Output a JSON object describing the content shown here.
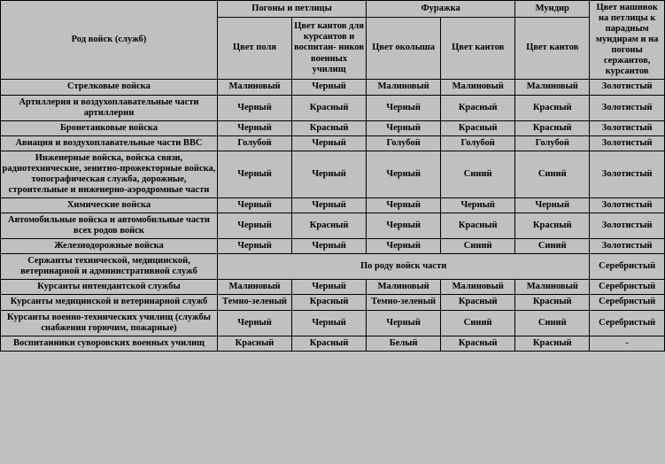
{
  "header": {
    "rod": "Род войск (служб)",
    "g1": "Погоны и петлицы",
    "g2": "Фуражка",
    "g3": "Мундир",
    "nashivok": "Цвет нашивок на петлицы к парадным мундирам и на погоны сержантов, курсантов",
    "c1": "Цвет поля",
    "c2": "Цвет кантов для курсантов и воспитан- ников военных училищ",
    "c3": "Цвет околыша",
    "c4": "Цвет кантов",
    "c5": "Цвет кантов"
  },
  "rows": [
    {
      "k": "r0",
      "name": "Стрелковые войска",
      "v": [
        "Малиновый",
        "Черный",
        "Малиновый",
        "Малиновый",
        "Малиновый",
        "Золотистый"
      ]
    },
    {
      "k": "r1",
      "name": "Артиллерия и воздухоплавательные части артиллерии",
      "v": [
        "Черный",
        "Красный",
        "Черный",
        "Красный",
        "Красный",
        "Золотистый"
      ]
    },
    {
      "k": "r2",
      "name": "Бронетанковые войска",
      "v": [
        "Черный",
        "Красный",
        "Черный",
        "Красный",
        "Красный",
        "Золотистый"
      ]
    },
    {
      "k": "r3",
      "name": "Авиация и воздухоплавательные части ВВС",
      "v": [
        "Голубой",
        "Черный",
        "Голубой",
        "Голубой",
        "Голубой",
        "Золотистый"
      ]
    },
    {
      "k": "r4",
      "name": "Инженерные войска, войска связи, радиотехнические, зенитно-прожекторные войска, топографическая служба, дорожные, строительные и инженерно-аэродромные части",
      "v": [
        "Черный",
        "Черный",
        "Черный",
        "Синий",
        "Синий",
        "Золотистый"
      ]
    },
    {
      "k": "r5",
      "name": "Химические войска",
      "v": [
        "Черный",
        "Черный",
        "Черный",
        "Черный",
        "Черный",
        "Золотистый"
      ]
    },
    {
      "k": "r6",
      "name": "Автомобильные войска и автомобильные части всех родов войск",
      "v": [
        "Черный",
        "Красный",
        "Черный",
        "Красный",
        "Красный",
        "Золотистый"
      ]
    },
    {
      "k": "r7",
      "name": "Железнодорожные войска",
      "v": [
        "Черный",
        "Черный",
        "Черный",
        "Синий",
        "Синий",
        "Золотистый"
      ]
    }
  ],
  "special": {
    "name": "Сержанты технической, медицинской, ветеринарной и административной служб",
    "span": "По роду войск части",
    "last": "Серебристый"
  },
  "rows2": [
    {
      "k": "s0",
      "name": "Курсанты интендантской службы",
      "v": [
        "Малиновый",
        "Черный",
        "Малиновый",
        "Малиновый",
        "Малиновый",
        "Серебристый"
      ]
    },
    {
      "k": "s1",
      "name": "Курсанты медицинской и ветеринарной служб",
      "v": [
        "Темно-зеленый",
        "Красный",
        "Темно-зеленый",
        "Красный",
        "Красный",
        "Серебристый"
      ]
    },
    {
      "k": "s2",
      "name": "Курсанты военно-технических училищ (службы снабжения горючим, пожарные)",
      "v": [
        "Черный",
        "Черный",
        "Черный",
        "Синий",
        "Синий",
        "Серебристый"
      ]
    },
    {
      "k": "s3",
      "name": "Воспитанники суворовских военных училищ",
      "v": [
        "Красный",
        "Красный",
        "Белый",
        "Красный",
        "Красный",
        "-"
      ]
    }
  ]
}
